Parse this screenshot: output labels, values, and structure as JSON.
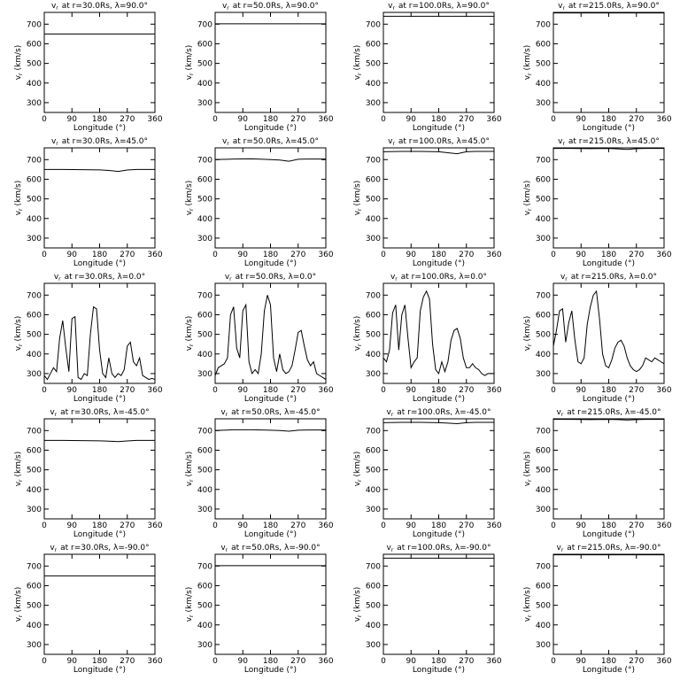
{
  "chart_data": [
    {
      "type": "line",
      "title_symbol": "v",
      "title_subscript": "r",
      "title": "at r=30.0Rs, λ=90.0°",
      "ylabel_symbol": "v",
      "ylabel_subscript": "r",
      "ylabel": "(km/s)",
      "xlabel": "Longitude (°)",
      "xlim": [
        0,
        360
      ],
      "xticks": [
        0,
        90,
        180,
        270,
        360
      ],
      "ylim": [
        250,
        760
      ],
      "yticks": [
        300,
        400,
        500,
        600,
        700
      ],
      "color": "#000000",
      "x": [
        0,
        90,
        180,
        270,
        360
      ],
      "values": [
        650,
        650,
        650,
        650,
        650
      ]
    },
    {
      "type": "line",
      "title_symbol": "v",
      "title_subscript": "r",
      "title": "at r=50.0Rs, λ=90.0°",
      "ylabel_symbol": "v",
      "ylabel_subscript": "r",
      "ylabel": "(km/s)",
      "xlabel": "Longitude (°)",
      "xlim": [
        0,
        360
      ],
      "xticks": [
        0,
        90,
        180,
        270,
        360
      ],
      "ylim": [
        250,
        760
      ],
      "yticks": [
        300,
        400,
        500,
        600,
        700
      ],
      "color": "#000000",
      "x": [
        0,
        90,
        180,
        270,
        360
      ],
      "values": [
        702,
        702,
        702,
        702,
        702
      ]
    },
    {
      "type": "line",
      "title_symbol": "v",
      "title_subscript": "r",
      "title": "at r=100.0Rs, λ=90.0°",
      "ylabel_symbol": "v",
      "ylabel_subscript": "r",
      "ylabel": "(km/s)",
      "xlabel": "Longitude (°)",
      "xlim": [
        0,
        360
      ],
      "xticks": [
        0,
        90,
        180,
        270,
        360
      ],
      "ylim": [
        250,
        760
      ],
      "yticks": [
        300,
        400,
        500,
        600,
        700
      ],
      "color": "#000000",
      "x": [
        0,
        90,
        180,
        270,
        360
      ],
      "values": [
        740,
        740,
        740,
        740,
        740
      ]
    },
    {
      "type": "line",
      "title_symbol": "v",
      "title_subscript": "r",
      "title": "at r=215.0Rs, λ=90.0°",
      "ylabel_symbol": "v",
      "ylabel_subscript": "r",
      "ylabel": "(km/s)",
      "xlabel": "Longitude (°)",
      "xlim": [
        0,
        360
      ],
      "xticks": [
        0,
        90,
        180,
        270,
        360
      ],
      "ylim": [
        250,
        760
      ],
      "yticks": [
        300,
        400,
        500,
        600,
        700
      ],
      "color": "#000000",
      "x": [
        0,
        90,
        180,
        270,
        360
      ],
      "values": [
        757,
        757,
        757,
        757,
        757
      ]
    },
    {
      "type": "line",
      "title_symbol": "v",
      "title_subscript": "r",
      "title": "at r=30.0Rs, λ=45.0°",
      "ylabel_symbol": "v",
      "ylabel_subscript": "r",
      "ylabel": "(km/s)",
      "xlabel": "Longitude (°)",
      "xlim": [
        0,
        360
      ],
      "xticks": [
        0,
        90,
        180,
        270,
        360
      ],
      "ylim": [
        250,
        760
      ],
      "yticks": [
        300,
        400,
        500,
        600,
        700
      ],
      "color": "#000000",
      "x": [
        0,
        60,
        120,
        180,
        210,
        240,
        270,
        300,
        360
      ],
      "values": [
        650,
        650,
        649,
        648,
        645,
        640,
        647,
        650,
        650
      ]
    },
    {
      "type": "line",
      "title_symbol": "v",
      "title_subscript": "r",
      "title": "at r=50.0Rs, λ=45.0°",
      "ylabel_symbol": "v",
      "ylabel_subscript": "r",
      "ylabel": "(km/s)",
      "xlabel": "Longitude (°)",
      "xlim": [
        0,
        360
      ],
      "xticks": [
        0,
        90,
        180,
        270,
        360
      ],
      "ylim": [
        250,
        760
      ],
      "yticks": [
        300,
        400,
        500,
        600,
        700
      ],
      "color": "#000000",
      "x": [
        0,
        60,
        120,
        180,
        210,
        240,
        270,
        300,
        360
      ],
      "values": [
        700,
        703,
        704,
        700,
        698,
        692,
        702,
        703,
        703
      ]
    },
    {
      "type": "line",
      "title_symbol": "v",
      "title_subscript": "r",
      "title": "at r=100.0Rs, λ=45.0°",
      "ylabel_symbol": "v",
      "ylabel_subscript": "r",
      "ylabel": "(km/s)",
      "xlabel": "Longitude (°)",
      "xlim": [
        0,
        360
      ],
      "xticks": [
        0,
        90,
        180,
        270,
        360
      ],
      "ylim": [
        250,
        760
      ],
      "yticks": [
        300,
        400,
        500,
        600,
        700
      ],
      "color": "#000000",
      "x": [
        0,
        60,
        120,
        180,
        210,
        240,
        270,
        300,
        360
      ],
      "values": [
        740,
        742,
        742,
        740,
        735,
        730,
        740,
        742,
        742
      ]
    },
    {
      "type": "line",
      "title_symbol": "v",
      "title_subscript": "r",
      "title": "at r=215.0Rs, λ=45.0°",
      "ylabel_symbol": "v",
      "ylabel_subscript": "r",
      "ylabel": "(km/s)",
      "xlabel": "Longitude (°)",
      "xlim": [
        0,
        360
      ],
      "xticks": [
        0,
        90,
        180,
        270,
        360
      ],
      "ylim": [
        250,
        760
      ],
      "yticks": [
        300,
        400,
        500,
        600,
        700
      ],
      "color": "#000000",
      "x": [
        0,
        60,
        120,
        180,
        210,
        240,
        270,
        300,
        360
      ],
      "values": [
        757,
        757,
        756,
        757,
        755,
        752,
        756,
        757,
        757
      ]
    },
    {
      "type": "line",
      "title_symbol": "v",
      "title_subscript": "r",
      "title": "at r=30.0Rs, λ=0.0°",
      "ylabel_symbol": "v",
      "ylabel_subscript": "r",
      "ylabel": "(km/s)",
      "xlabel": "Longitude (°)",
      "xlim": [
        0,
        360
      ],
      "xticks": [
        0,
        90,
        180,
        270,
        360
      ],
      "ylim": [
        250,
        760
      ],
      "yticks": [
        300,
        400,
        500,
        600,
        700
      ],
      "color": "#000000",
      "x": [
        0,
        10,
        20,
        30,
        40,
        50,
        60,
        70,
        80,
        90,
        100,
        110,
        120,
        130,
        140,
        150,
        160,
        170,
        180,
        190,
        200,
        210,
        220,
        230,
        240,
        250,
        260,
        270,
        280,
        290,
        300,
        310,
        320,
        330,
        340,
        350,
        360
      ],
      "values": [
        290,
        270,
        300,
        330,
        310,
        480,
        570,
        430,
        310,
        580,
        590,
        280,
        270,
        300,
        290,
        500,
        640,
        630,
        420,
        300,
        280,
        380,
        300,
        280,
        300,
        290,
        320,
        440,
        460,
        360,
        340,
        380,
        290,
        280,
        270,
        275,
        270
      ]
    },
    {
      "type": "line",
      "title_symbol": "v",
      "title_subscript": "r",
      "title": "at r=50.0Rs, λ=0.0°",
      "ylabel_symbol": "v",
      "ylabel_subscript": "r",
      "ylabel": "(km/s)",
      "xlabel": "Longitude (°)",
      "xlim": [
        0,
        360
      ],
      "xticks": [
        0,
        90,
        180,
        270,
        360
      ],
      "ylim": [
        250,
        760
      ],
      "yticks": [
        300,
        400,
        500,
        600,
        700
      ],
      "color": "#000000",
      "x": [
        0,
        10,
        20,
        30,
        40,
        50,
        60,
        70,
        80,
        90,
        100,
        110,
        120,
        130,
        140,
        150,
        160,
        170,
        180,
        190,
        200,
        210,
        220,
        230,
        240,
        250,
        260,
        270,
        280,
        290,
        300,
        310,
        320,
        330,
        340,
        350,
        360
      ],
      "values": [
        290,
        330,
        340,
        350,
        380,
        600,
        640,
        430,
        380,
        620,
        650,
        360,
        300,
        320,
        300,
        400,
        620,
        700,
        650,
        380,
        310,
        400,
        320,
        300,
        310,
        340,
        420,
        510,
        520,
        440,
        370,
        340,
        360,
        300,
        290,
        280,
        270
      ]
    },
    {
      "type": "line",
      "title_symbol": "v",
      "title_subscript": "r",
      "title": "at r=100.0Rs, λ=0.0°",
      "ylabel_symbol": "v",
      "ylabel_subscript": "r",
      "ylabel": "(km/s)",
      "xlabel": "Longitude (°)",
      "xlim": [
        0,
        360
      ],
      "xticks": [
        0,
        90,
        180,
        270,
        360
      ],
      "ylim": [
        250,
        760
      ],
      "yticks": [
        300,
        400,
        500,
        600,
        700
      ],
      "color": "#000000",
      "x": [
        0,
        10,
        20,
        30,
        40,
        50,
        60,
        70,
        80,
        90,
        100,
        110,
        120,
        130,
        140,
        150,
        160,
        170,
        180,
        190,
        200,
        210,
        220,
        230,
        240,
        250,
        260,
        270,
        280,
        290,
        300,
        310,
        320,
        330,
        340,
        350,
        360
      ],
      "values": [
        380,
        360,
        420,
        610,
        650,
        420,
        600,
        650,
        480,
        330,
        360,
        380,
        620,
        690,
        720,
        680,
        450,
        320,
        300,
        360,
        310,
        360,
        470,
        520,
        530,
        480,
        380,
        330,
        330,
        350,
        330,
        320,
        300,
        290,
        300,
        300,
        300
      ]
    },
    {
      "type": "line",
      "title_symbol": "v",
      "title_subscript": "r",
      "title": "at r=215.0Rs, λ=0.0°",
      "ylabel_symbol": "v",
      "ylabel_subscript": "r",
      "ylabel": "(km/s)",
      "xlabel": "Longitude (°)",
      "xlim": [
        0,
        360
      ],
      "xticks": [
        0,
        90,
        180,
        270,
        360
      ],
      "ylim": [
        250,
        760
      ],
      "yticks": [
        300,
        400,
        500,
        600,
        700
      ],
      "color": "#000000",
      "x": [
        0,
        10,
        20,
        30,
        40,
        50,
        60,
        70,
        80,
        90,
        100,
        110,
        120,
        130,
        140,
        150,
        160,
        170,
        180,
        190,
        200,
        210,
        220,
        230,
        240,
        250,
        260,
        270,
        280,
        290,
        300,
        310,
        320,
        330,
        340,
        350,
        360
      ],
      "values": [
        440,
        520,
        620,
        630,
        460,
        560,
        620,
        470,
        360,
        350,
        380,
        550,
        640,
        700,
        720,
        580,
        400,
        340,
        330,
        370,
        430,
        460,
        470,
        440,
        380,
        340,
        320,
        310,
        320,
        340,
        380,
        370,
        360,
        380,
        370,
        360,
        350
      ]
    },
    {
      "type": "line",
      "title_symbol": "v",
      "title_subscript": "r",
      "title": "at r=30.0Rs, λ=-45.0°",
      "ylabel_symbol": "v",
      "ylabel_subscript": "r",
      "ylabel": "(km/s)",
      "xlabel": "Longitude (°)",
      "xlim": [
        0,
        360
      ],
      "xticks": [
        0,
        90,
        180,
        270,
        360
      ],
      "ylim": [
        250,
        760
      ],
      "yticks": [
        300,
        400,
        500,
        600,
        700
      ],
      "color": "#000000",
      "x": [
        0,
        60,
        120,
        180,
        210,
        240,
        270,
        300,
        360
      ],
      "values": [
        650,
        650,
        649,
        648,
        646,
        644,
        647,
        650,
        650
      ]
    },
    {
      "type": "line",
      "title_symbol": "v",
      "title_subscript": "r",
      "title": "at r=50.0Rs, λ=-45.0°",
      "ylabel_symbol": "v",
      "ylabel_subscript": "r",
      "ylabel": "(km/s)",
      "xlabel": "Longitude (°)",
      "xlim": [
        0,
        360
      ],
      "xticks": [
        0,
        90,
        180,
        270,
        360
      ],
      "ylim": [
        250,
        760
      ],
      "yticks": [
        300,
        400,
        500,
        600,
        700
      ],
      "color": "#000000",
      "x": [
        0,
        60,
        120,
        180,
        210,
        240,
        270,
        300,
        360
      ],
      "values": [
        700,
        704,
        704,
        702,
        700,
        697,
        702,
        703,
        703
      ]
    },
    {
      "type": "line",
      "title_symbol": "v",
      "title_subscript": "r",
      "title": "at r=100.0Rs, λ=-45.0°",
      "ylabel_symbol": "v",
      "ylabel_subscript": "r",
      "ylabel": "(km/s)",
      "xlabel": "Longitude (°)",
      "xlim": [
        0,
        360
      ],
      "xticks": [
        0,
        90,
        180,
        270,
        360
      ],
      "ylim": [
        250,
        760
      ],
      "yticks": [
        300,
        400,
        500,
        600,
        700
      ],
      "color": "#000000",
      "x": [
        0,
        60,
        120,
        180,
        210,
        240,
        270,
        300,
        360
      ],
      "values": [
        740,
        742,
        742,
        740,
        738,
        735,
        740,
        742,
        742
      ]
    },
    {
      "type": "line",
      "title_symbol": "v",
      "title_subscript": "r",
      "title": "at r=215.0Rs, λ=-45.0°",
      "ylabel_symbol": "v",
      "ylabel_subscript": "r",
      "ylabel": "(km/s)",
      "xlabel": "Longitude (°)",
      "xlim": [
        0,
        360
      ],
      "xticks": [
        0,
        90,
        180,
        270,
        360
      ],
      "ylim": [
        250,
        760
      ],
      "yticks": [
        300,
        400,
        500,
        600,
        700
      ],
      "color": "#000000",
      "x": [
        0,
        60,
        120,
        180,
        210,
        240,
        270,
        300,
        360
      ],
      "values": [
        757,
        757,
        756,
        757,
        756,
        754,
        756,
        757,
        757
      ]
    },
    {
      "type": "line",
      "title_symbol": "v",
      "title_subscript": "r",
      "title": "at r=30.0Rs, λ=-90.0°",
      "ylabel_symbol": "v",
      "ylabel_subscript": "r",
      "ylabel": "(km/s)",
      "xlabel": "Longitude (°)",
      "xlim": [
        0,
        360
      ],
      "xticks": [
        0,
        90,
        180,
        270,
        360
      ],
      "ylim": [
        250,
        760
      ],
      "yticks": [
        300,
        400,
        500,
        600,
        700
      ],
      "color": "#000000",
      "x": [
        0,
        90,
        180,
        270,
        360
      ],
      "values": [
        650,
        650,
        650,
        650,
        650
      ]
    },
    {
      "type": "line",
      "title_symbol": "v",
      "title_subscript": "r",
      "title": "at r=50.0Rs, λ=-90.0°",
      "ylabel_symbol": "v",
      "ylabel_subscript": "r",
      "ylabel": "(km/s)",
      "xlabel": "Longitude (°)",
      "xlim": [
        0,
        360
      ],
      "xticks": [
        0,
        90,
        180,
        270,
        360
      ],
      "ylim": [
        250,
        760
      ],
      "yticks": [
        300,
        400,
        500,
        600,
        700
      ],
      "color": "#000000",
      "x": [
        0,
        90,
        180,
        270,
        360
      ],
      "values": [
        702,
        702,
        702,
        702,
        702
      ]
    },
    {
      "type": "line",
      "title_symbol": "v",
      "title_subscript": "r",
      "title": "at r=100.0Rs, λ=-90.0°",
      "ylabel_symbol": "v",
      "ylabel_subscript": "r",
      "ylabel": "(km/s)",
      "xlabel": "Longitude (°)",
      "xlim": [
        0,
        360
      ],
      "xticks": [
        0,
        90,
        180,
        270,
        360
      ],
      "ylim": [
        250,
        760
      ],
      "yticks": [
        300,
        400,
        500,
        600,
        700
      ],
      "color": "#000000",
      "x": [
        0,
        90,
        180,
        270,
        360
      ],
      "values": [
        740,
        740,
        740,
        740,
        740
      ]
    },
    {
      "type": "line",
      "title_symbol": "v",
      "title_subscript": "r",
      "title": "at r=215.0Rs, λ=-90.0°",
      "ylabel_symbol": "v",
      "ylabel_subscript": "r",
      "ylabel": "(km/s)",
      "xlabel": "Longitude (°)",
      "xlim": [
        0,
        360
      ],
      "xticks": [
        0,
        90,
        180,
        270,
        360
      ],
      "ylim": [
        250,
        760
      ],
      "yticks": [
        300,
        400,
        500,
        600,
        700
      ],
      "color": "#000000",
      "x": [
        0,
        90,
        180,
        270,
        360
      ],
      "values": [
        757,
        757,
        757,
        757,
        757
      ]
    }
  ]
}
